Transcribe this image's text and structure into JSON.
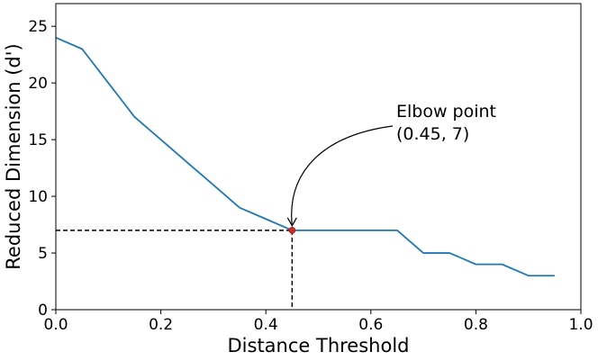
{
  "chart_data": {
    "type": "line",
    "title": "",
    "xlabel": "Distance Threshold",
    "ylabel": "Reduced Dimension (d')",
    "xlim": [
      0.0,
      1.0
    ],
    "ylim": [
      0,
      27
    ],
    "grid": false,
    "xticks": [
      0.0,
      0.2,
      0.4,
      0.6,
      0.8,
      1.0
    ],
    "xtick_labels": [
      "0.0",
      "0.2",
      "0.4",
      "0.6",
      "0.8",
      "1.0"
    ],
    "yticks": [
      0,
      5,
      10,
      15,
      20,
      25
    ],
    "ytick_labels": [
      "0",
      "5",
      "10",
      "15",
      "20",
      "25"
    ],
    "series": [
      {
        "name": "Reduced Dimension",
        "color": "#1f77b4",
        "x": [
          0.0,
          0.05,
          0.1,
          0.15,
          0.2,
          0.25,
          0.3,
          0.35,
          0.4,
          0.45,
          0.5,
          0.55,
          0.6,
          0.65,
          0.7,
          0.75,
          0.8,
          0.85,
          0.9,
          0.95
        ],
        "y": [
          24,
          23,
          20,
          17,
          15,
          13,
          11,
          9,
          8,
          7,
          7,
          7,
          7,
          7,
          5,
          5,
          4,
          4,
          3,
          3
        ]
      }
    ],
    "elbow": {
      "x": 0.45,
      "y": 7,
      "marker_color": "#d62728",
      "guide_color": "#000000",
      "label_line1": "Elbow point",
      "label_line2": "(0.45, 7)"
    }
  }
}
